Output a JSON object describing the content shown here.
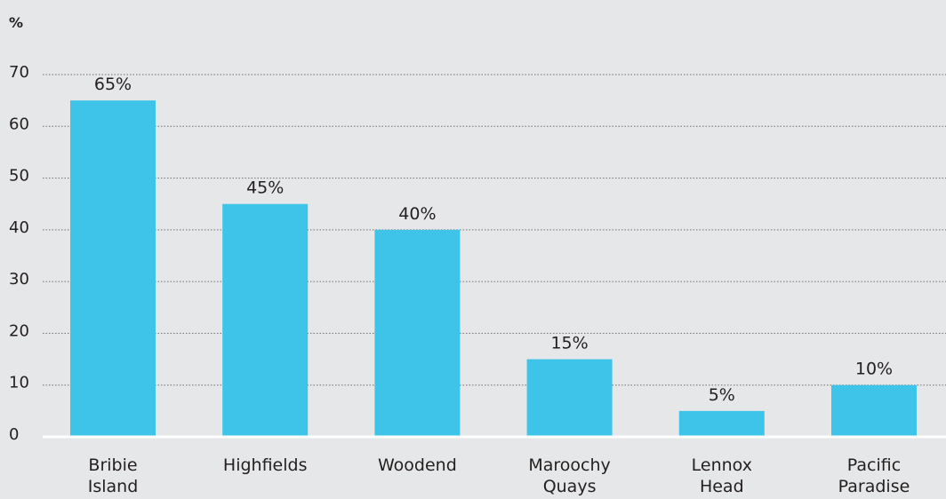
{
  "chart_data": {
    "type": "bar",
    "y_unit_label": "%",
    "categories": [
      [
        "Bribie",
        "Island"
      ],
      [
        "Highfields"
      ],
      [
        "Woodend"
      ],
      [
        "Maroochy",
        "Quays"
      ],
      [
        "Lennox",
        "Head"
      ],
      [
        "Pacific",
        "Paradise"
      ]
    ],
    "values": [
      65,
      45,
      40,
      15,
      5,
      10
    ],
    "data_labels": [
      "65%",
      "45%",
      "40%",
      "15%",
      "5%",
      "10%"
    ],
    "ylim": [
      0,
      70
    ],
    "yticks": [
      0,
      10,
      20,
      30,
      40,
      50,
      60,
      70
    ],
    "grid": true,
    "colors": {
      "bar": "#3ec4e8",
      "background": "#e6e7e8",
      "text": "#231f20",
      "grid": "#6d6e71"
    }
  }
}
